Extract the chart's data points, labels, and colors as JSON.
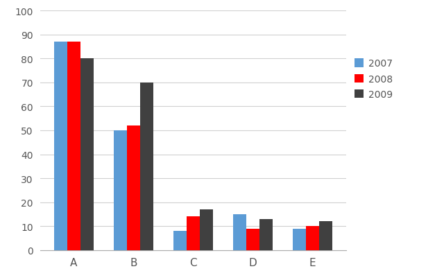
{
  "categories": [
    "A",
    "B",
    "C",
    "D",
    "E"
  ],
  "series": {
    "2007": [
      87,
      50,
      8,
      15,
      9
    ],
    "2008": [
      87,
      52,
      14,
      9,
      10
    ],
    "2009": [
      80,
      70,
      17,
      13,
      12
    ]
  },
  "colors": {
    "2007": "#5B9BD5",
    "2008": "#FF0000",
    "2009": "#404040"
  },
  "ylim": [
    0,
    100
  ],
  "yticks": [
    0,
    10,
    20,
    30,
    40,
    50,
    60,
    70,
    80,
    90,
    100
  ],
  "legend_labels": [
    "2007",
    "2008",
    "2009"
  ],
  "background_color": "#FFFFFF",
  "grid_color": "#D0D0D0",
  "bar_width": 0.22
}
